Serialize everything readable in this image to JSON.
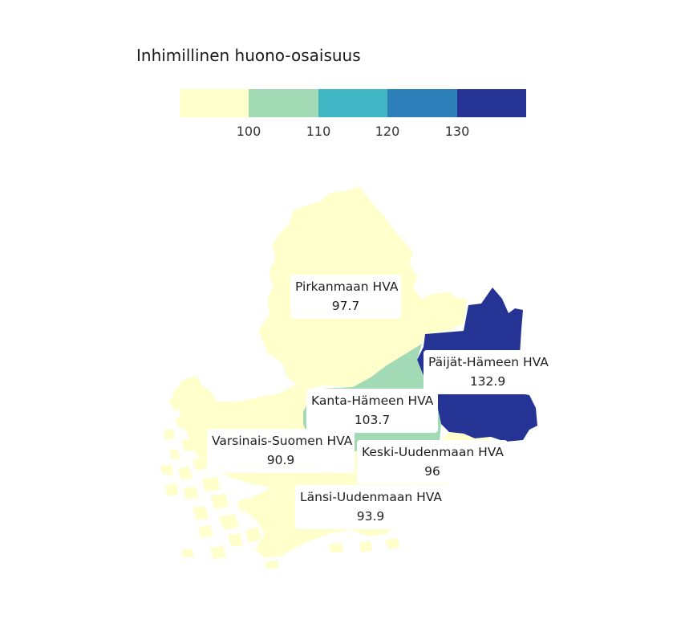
{
  "legend": {
    "title": "Inhimillinen huono-osaisuus",
    "colors": [
      "#ffffcc",
      "#a1dab4",
      "#41b6c4",
      "#2c7fb8",
      "#253494"
    ],
    "ticks": [
      "100",
      "110",
      "120",
      "130"
    ],
    "tick_values": [
      100,
      110,
      120,
      130
    ]
  },
  "regions": [
    {
      "name": "Pirkanmaan HVA",
      "value": "97.7",
      "color": "#ffffcc"
    },
    {
      "name": "Päijät-Hämeen HVA",
      "value": "132.9",
      "color": "#253494"
    },
    {
      "name": "Kanta-Hämeen HVA",
      "value": "103.7",
      "color": "#a1dab4"
    },
    {
      "name": "Varsinais-Suomen HVA",
      "value": "90.9",
      "color": "#ffffcc"
    },
    {
      "name": "Keski-Uudenmaan HVA",
      "value": "96",
      "color": "#ffffcc"
    },
    {
      "name": "Länsi-Uudenmaan HVA",
      "value": "93.9",
      "color": "#ffffcc"
    }
  ]
}
